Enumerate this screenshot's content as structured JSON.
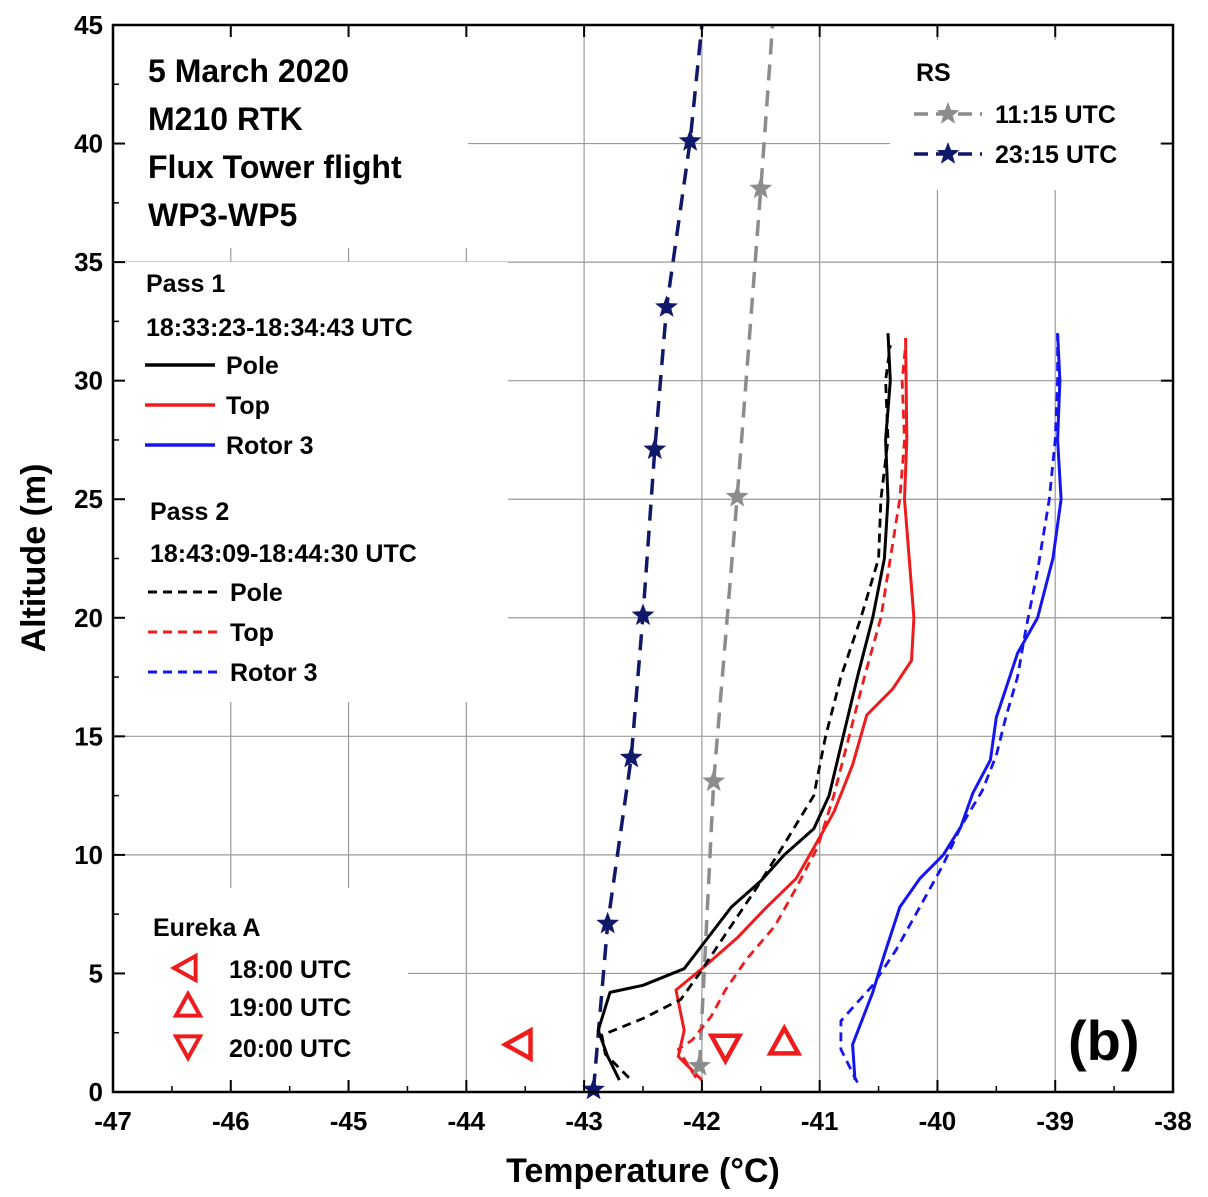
{
  "chart_data": {
    "type": "line",
    "xlabel": "Temperature (°C)",
    "ylabel": "Altitude (m)",
    "xlim": [
      -47,
      -38
    ],
    "ylim": [
      0,
      45
    ],
    "xticks": [
      -47,
      -46,
      -45,
      -44,
      -43,
      -42,
      -41,
      -40,
      -39,
      -38
    ],
    "yticks": [
      0,
      5,
      10,
      15,
      20,
      25,
      30,
      35,
      40,
      45
    ],
    "grid": true,
    "panel_label": "(b)",
    "annotation_lines": [
      "5 March 2020",
      "M210 RTK",
      "Flux Tower flight",
      "WP3-WP5"
    ],
    "legend": {
      "pass1_title": "Pass 1",
      "pass1_time": "18:33:23-18:34:43 UTC",
      "pass2_title": "Pass 2",
      "pass2_time": "18:43:09-18:44:30 UTC",
      "items": [
        "Pole",
        "Top",
        "Rotor 3"
      ],
      "rs_title": "RS",
      "rs_items": [
        "11:15 UTC",
        "23:15 UTC"
      ],
      "eureka_title": "Eureka A",
      "eureka_items": [
        "18:00 UTC",
        "19:00 UTC",
        "20:00 UTC"
      ]
    },
    "colors": {
      "pole": "#000000",
      "top": "#ee1c1c",
      "rotor": "#1515ee",
      "rs1115": "#8c8c8c",
      "rs2315": "#10186a",
      "eureka": "#ee1c1c",
      "grid": "#9a9a9a"
    },
    "series": [
      {
        "name": "11:15 UTC",
        "kind": "rs",
        "color_key": "rs1115",
        "x": [
          -42.02,
          -41.9,
          -41.7,
          -41.5,
          -41.4
        ],
        "y": [
          1.1,
          13.1,
          25.1,
          38.1,
          45.0
        ],
        "marker_y": [
          1.1,
          13.1,
          25.1,
          38.1
        ]
      },
      {
        "name": "23:15 UTC",
        "kind": "rs",
        "color_key": "rs2315",
        "x": [
          -42.92,
          -42.8,
          -42.6,
          -42.5,
          -42.4,
          -42.3,
          -42.1,
          -42.0
        ],
        "y": [
          0.1,
          7.1,
          14.1,
          20.1,
          27.1,
          33.1,
          40.1,
          45.0
        ],
        "marker_y": [
          0.1,
          7.1,
          14.1,
          20.1,
          27.1,
          33.1,
          40.1
        ]
      },
      {
        "name": "Pole",
        "pass": 1,
        "color_key": "pole",
        "x": [
          -42.7,
          -42.8,
          -42.88,
          -42.78,
          -42.5,
          -42.15,
          -41.95,
          -41.75,
          -41.5,
          -41.3,
          -41.05,
          -40.92,
          -40.8,
          -40.68,
          -40.55,
          -40.45,
          -40.42,
          -40.44,
          -40.4,
          -40.42
        ],
        "y": [
          0.5,
          1.5,
          2.6,
          4.2,
          4.5,
          5.2,
          6.5,
          7.8,
          8.9,
          10.0,
          11.1,
          12.5,
          15.0,
          17.5,
          20.0,
          22.5,
          25.0,
          27.5,
          30.0,
          32.0
        ]
      },
      {
        "name": "Top",
        "pass": 1,
        "color_key": "top",
        "x": [
          -42.0,
          -42.2,
          -42.15,
          -42.22,
          -42.0,
          -41.7,
          -41.45,
          -41.2,
          -41.05,
          -40.88,
          -40.72,
          -40.6,
          -40.38,
          -40.22,
          -40.2,
          -40.24,
          -40.28,
          -40.26,
          -40.27
        ],
        "y": [
          0.5,
          1.5,
          2.6,
          4.3,
          5.2,
          6.5,
          7.8,
          9.0,
          10.3,
          11.8,
          13.8,
          15.9,
          17.0,
          18.2,
          20.0,
          22.5,
          25.0,
          27.5,
          31.8
        ]
      },
      {
        "name": "Rotor 3",
        "pass": 1,
        "color_key": "rotor",
        "x": [
          -40.7,
          -40.72,
          -40.55,
          -40.45,
          -40.32,
          -40.15,
          -39.95,
          -39.8,
          -39.7,
          -39.55,
          -39.5,
          -39.42,
          -39.32,
          -39.15,
          -39.02,
          -38.95,
          -38.98,
          -38.96,
          -38.98
        ],
        "y": [
          0.5,
          2.0,
          4.2,
          5.8,
          7.8,
          9.0,
          10.0,
          11.2,
          12.6,
          14.0,
          15.8,
          17.0,
          18.5,
          20.0,
          22.5,
          25.0,
          27.5,
          30.0,
          32.0
        ]
      },
      {
        "name": "Pole",
        "pass": 2,
        "color_key": "pole",
        "x": [
          -42.62,
          -42.82,
          -42.85,
          -42.5,
          -42.18,
          -42.02,
          -41.78,
          -41.55,
          -41.32,
          -41.05,
          -40.95,
          -40.82,
          -40.65,
          -40.5,
          -40.48,
          -40.42,
          -40.44,
          -40.4
        ],
        "y": [
          0.6,
          1.6,
          2.4,
          3.1,
          3.9,
          5.0,
          6.8,
          8.5,
          10.3,
          12.5,
          15.0,
          17.5,
          20.0,
          22.5,
          25.0,
          27.5,
          30.0,
          31.5
        ]
      },
      {
        "name": "Top",
        "pass": 2,
        "color_key": "top",
        "x": [
          -42.05,
          -42.2,
          -42.08,
          -41.92,
          -41.8,
          -41.62,
          -41.38,
          -41.2,
          -41.02,
          -40.88,
          -40.75,
          -40.62,
          -40.48,
          -40.4,
          -40.32,
          -40.28,
          -40.3,
          -40.27
        ],
        "y": [
          0.6,
          1.8,
          2.2,
          3.2,
          4.3,
          5.6,
          7.0,
          8.6,
          10.3,
          12.5,
          15.0,
          17.5,
          20.0,
          22.5,
          25.0,
          27.5,
          30.0,
          31.5
        ]
      },
      {
        "name": "Rotor 3",
        "pass": 2,
        "color_key": "rotor",
        "x": [
          -40.68,
          -40.82,
          -40.82,
          -40.55,
          -40.35,
          -40.15,
          -39.95,
          -39.8,
          -39.62,
          -39.5,
          -39.42,
          -39.32,
          -39.25,
          -39.15,
          -39.05,
          -39.0,
          -38.98,
          -38.98
        ],
        "y": [
          0.4,
          1.8,
          3.0,
          4.5,
          6.0,
          7.8,
          9.6,
          11.2,
          12.7,
          14.2,
          15.8,
          17.5,
          19.5,
          22.0,
          25.0,
          27.5,
          30.0,
          32.0
        ]
      }
    ],
    "eureka_points": [
      {
        "label": "18:00 UTC",
        "marker": "triangle-left",
        "x": -43.55,
        "y": 2.0
      },
      {
        "label": "19:00 UTC",
        "marker": "triangle-up",
        "x": -41.3,
        "y": 2.1
      },
      {
        "label": "20:00 UTC",
        "marker": "triangle-down",
        "x": -41.8,
        "y": 1.9
      }
    ]
  }
}
